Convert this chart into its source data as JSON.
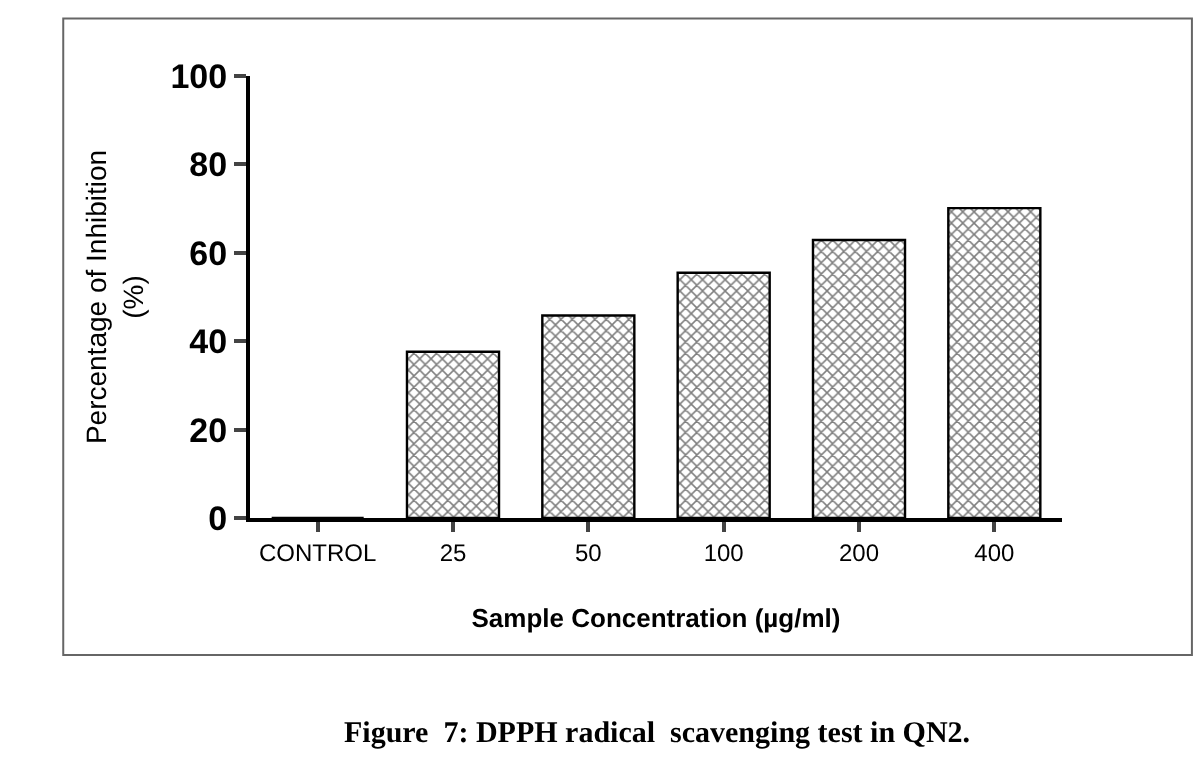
{
  "chart_data": {
    "type": "bar",
    "categories": [
      "CONTROL",
      "25",
      "50",
      "100",
      "200",
      "400"
    ],
    "values": [
      0,
      37.6,
      45.8,
      55.5,
      62.9,
      70.1
    ],
    "color": "#000000",
    "xlabel": "Sample Concentration (µg/ml)",
    "ylabel": "Percentage of Inhibition\n(%)",
    "ylim": [
      0,
      100
    ],
    "yticks": [
      0,
      20,
      40,
      60,
      80,
      100
    ],
    "legend": false,
    "annotations": [
      "Figure  7: DPPH radical  scavenging test in QN2."
    ]
  }
}
